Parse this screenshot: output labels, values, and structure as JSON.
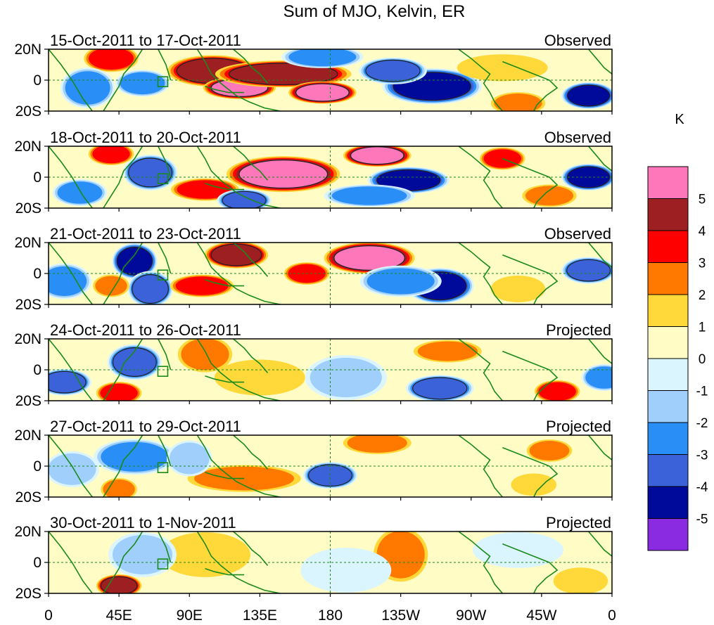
{
  "chart_data": {
    "type": "heatmap",
    "title": "Sum of MJO, Kelvin, ER",
    "colorbar_unit": "K",
    "colorbar_levels": [
      "5",
      "4",
      "3",
      "2",
      "1",
      "0",
      "-1",
      "-2",
      "-3",
      "-4",
      "-5"
    ],
    "colorbar_colors": [
      "#ff77bb",
      "#9e1f22",
      "#ff0000",
      "#ff7800",
      "#ffd93a",
      "#fffcc6",
      "#dbf5ff",
      "#a0cffc",
      "#2a8ef7",
      "#3c62d9",
      "#000a9a",
      "#8a2be2"
    ],
    "x_ticks": [
      "0",
      "45E",
      "90E",
      "135E",
      "180",
      "135W",
      "90W",
      "45W",
      "0"
    ],
    "y_ticks": [
      "20N",
      "0",
      "20S"
    ],
    "panels": [
      {
        "period": "15-Oct-2011 to 17-Oct-2011",
        "status": "Observed",
        "anomalies": [
          {
            "lon": 40,
            "lat": 14,
            "value": 3,
            "rlon": 12,
            "rlat": 6
          },
          {
            "lon": 105,
            "lat": 6,
            "value": 4,
            "rlon": 20,
            "rlat": 7
          },
          {
            "lon": 122,
            "lat": -5,
            "value": 5,
            "rlon": 16,
            "rlat": 5
          },
          {
            "lon": 150,
            "lat": 4,
            "value": 4,
            "rlon": 30,
            "rlat": 6
          },
          {
            "lon": 175,
            "lat": -8,
            "value": 5,
            "rlon": 15,
            "rlat": 5
          },
          {
            "lon": 245,
            "lat": -4,
            "value": -5,
            "rlon": 22,
            "rlat": 8
          },
          {
            "lon": 220,
            "lat": 6,
            "value": -4,
            "rlon": 15,
            "rlat": 6
          },
          {
            "lon": 290,
            "lat": 8,
            "value": 1,
            "rlon": 20,
            "rlat": 6
          },
          {
            "lon": 345,
            "lat": -10,
            "value": -5,
            "rlon": 12,
            "rlat": 6
          },
          {
            "lon": 25,
            "lat": -5,
            "value": -3,
            "rlon": 12,
            "rlat": 9
          },
          {
            "lon": 60,
            "lat": -2,
            "value": -3,
            "rlon": 12,
            "rlat": 6
          },
          {
            "lon": 175,
            "lat": 15,
            "value": -3,
            "rlon": 18,
            "rlat": 5
          },
          {
            "lon": 300,
            "lat": -15,
            "value": 2,
            "rlon": 12,
            "rlat": 5
          }
        ]
      },
      {
        "period": "18-Oct-2011 to 20-Oct-2011",
        "status": "Observed",
        "anomalies": [
          {
            "lon": 40,
            "lat": 15,
            "value": 3,
            "rlon": 10,
            "rlat": 5
          },
          {
            "lon": 65,
            "lat": 3,
            "value": -4,
            "rlon": 12,
            "rlat": 8
          },
          {
            "lon": 150,
            "lat": 2,
            "value": 5,
            "rlon": 25,
            "rlat": 8
          },
          {
            "lon": 210,
            "lat": 14,
            "value": 5,
            "rlon": 15,
            "rlat": 5
          },
          {
            "lon": 230,
            "lat": -2,
            "value": -5,
            "rlon": 18,
            "rlat": 6
          },
          {
            "lon": 290,
            "lat": 12,
            "value": 3,
            "rlon": 10,
            "rlat": 5
          },
          {
            "lon": 205,
            "lat": -12,
            "value": -3,
            "rlon": 20,
            "rlat": 5
          },
          {
            "lon": 100,
            "lat": -8,
            "value": 3,
            "rlon": 15,
            "rlat": 5
          },
          {
            "lon": 20,
            "lat": -10,
            "value": -3,
            "rlon": 12,
            "rlat": 6
          },
          {
            "lon": 345,
            "lat": 0,
            "value": -5,
            "rlon": 12,
            "rlat": 6
          },
          {
            "lon": 320,
            "lat": -12,
            "value": 2,
            "rlon": 12,
            "rlat": 5
          },
          {
            "lon": 125,
            "lat": -15,
            "value": -4,
            "rlon": 12,
            "rlat": 5
          }
        ]
      },
      {
        "period": "21-Oct-2011 to 23-Oct-2011",
        "status": "Observed",
        "anomalies": [
          {
            "lon": 55,
            "lat": 8,
            "value": -5,
            "rlon": 10,
            "rlat": 8
          },
          {
            "lon": 65,
            "lat": -10,
            "value": -4,
            "rlon": 10,
            "rlat": 8
          },
          {
            "lon": 98,
            "lat": -8,
            "value": 3,
            "rlon": 14,
            "rlat": 5
          },
          {
            "lon": 120,
            "lat": 12,
            "value": 4,
            "rlon": 14,
            "rlat": 6
          },
          {
            "lon": 205,
            "lat": 10,
            "value": 5,
            "rlon": 20,
            "rlat": 7
          },
          {
            "lon": 250,
            "lat": -8,
            "value": -5,
            "rlon": 15,
            "rlat": 8
          },
          {
            "lon": 165,
            "lat": 0,
            "value": 3,
            "rlon": 10,
            "rlat": 5
          },
          {
            "lon": 345,
            "lat": 2,
            "value": -4,
            "rlon": 12,
            "rlat": 6
          },
          {
            "lon": 10,
            "lat": -5,
            "value": -3,
            "rlon": 12,
            "rlat": 8
          },
          {
            "lon": 40,
            "lat": -8,
            "value": 2,
            "rlon": 8,
            "rlat": 5
          },
          {
            "lon": 225,
            "lat": -5,
            "value": -3,
            "rlon": 18,
            "rlat": 7
          },
          {
            "lon": 300,
            "lat": -10,
            "value": 1,
            "rlon": 12,
            "rlat": 6
          }
        ]
      },
      {
        "period": "24-Oct-2011 to 26-Oct-2011",
        "status": "Projected",
        "anomalies": [
          {
            "lon": 55,
            "lat": 5,
            "value": -4,
            "rlon": 12,
            "rlat": 8
          },
          {
            "lon": 10,
            "lat": -8,
            "value": -4,
            "rlon": 12,
            "rlat": 6
          },
          {
            "lon": 45,
            "lat": -15,
            "value": 3,
            "rlon": 10,
            "rlat": 5
          },
          {
            "lon": 100,
            "lat": 10,
            "value": 2,
            "rlon": 12,
            "rlat": 8
          },
          {
            "lon": 250,
            "lat": -12,
            "value": -4,
            "rlon": 15,
            "rlat": 6
          },
          {
            "lon": 325,
            "lat": -14,
            "value": 3,
            "rlon": 10,
            "rlat": 5
          },
          {
            "lon": 255,
            "lat": 12,
            "value": 2,
            "rlon": 15,
            "rlat": 5
          },
          {
            "lon": 135,
            "lat": -5,
            "value": 1,
            "rlon": 20,
            "rlat": 8
          },
          {
            "lon": 190,
            "lat": -5,
            "value": -2,
            "rlon": 18,
            "rlat": 10
          },
          {
            "lon": 355,
            "lat": -5,
            "value": -3,
            "rlon": 10,
            "rlat": 6
          }
        ]
      },
      {
        "period": "27-Oct-2011 to 29-Oct-2011",
        "status": "Projected",
        "anomalies": [
          {
            "lon": 55,
            "lat": 6,
            "value": -3,
            "rlon": 18,
            "rlat": 8
          },
          {
            "lon": 45,
            "lat": -15,
            "value": 2,
            "rlon": 8,
            "rlat": 5
          },
          {
            "lon": 125,
            "lat": -8,
            "value": 2,
            "rlon": 25,
            "rlat": 6
          },
          {
            "lon": 180,
            "lat": -6,
            "value": -4,
            "rlon": 12,
            "rlat": 6
          },
          {
            "lon": 210,
            "lat": 15,
            "value": 2,
            "rlon": 15,
            "rlat": 5
          },
          {
            "lon": 320,
            "lat": 10,
            "value": 2,
            "rlon": 10,
            "rlat": 5
          },
          {
            "lon": 310,
            "lat": -12,
            "value": 1,
            "rlon": 10,
            "rlat": 5
          },
          {
            "lon": 90,
            "lat": 5,
            "value": -2,
            "rlon": 10,
            "rlat": 8
          },
          {
            "lon": 15,
            "lat": -2,
            "value": -2,
            "rlon": 12,
            "rlat": 8
          }
        ]
      },
      {
        "period": "30-Oct-2011 to 1-Nov-2011",
        "status": "Projected",
        "anomalies": [
          {
            "lon": 45,
            "lat": -15,
            "value": 4,
            "rlon": 10,
            "rlat": 5
          },
          {
            "lon": 225,
            "lat": 5,
            "value": 2,
            "rlon": 12,
            "rlat": 12
          },
          {
            "lon": 100,
            "lat": 5,
            "value": 1,
            "rlon": 20,
            "rlat": 10
          },
          {
            "lon": 190,
            "lat": -5,
            "value": -1,
            "rlon": 20,
            "rlat": 10
          },
          {
            "lon": 60,
            "lat": 5,
            "value": -2,
            "rlon": 15,
            "rlat": 10
          },
          {
            "lon": 300,
            "lat": 8,
            "value": -1,
            "rlon": 20,
            "rlat": 8
          },
          {
            "lon": 340,
            "lat": -12,
            "value": 1,
            "rlon": 12,
            "rlat": 6
          }
        ]
      }
    ]
  }
}
